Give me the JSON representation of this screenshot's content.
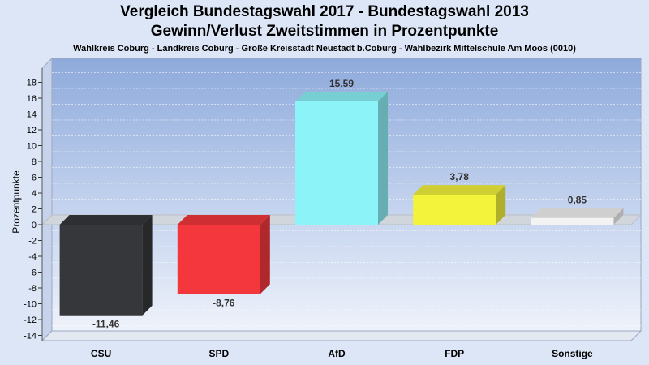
{
  "header": {
    "title_line1": "Vergleich Bundestagswahl 2017 - Bundestagswahl 2013",
    "title_line2": "Gewinn/Verlust Zweitstimmen in Prozentpunkte",
    "subtitle": "Wahlkreis Coburg - Landkreis Coburg - Große Kreisstadt Neustadt b.Coburg - Wahlbezirk Mittelschule Am Moos (0010)"
  },
  "chart_data": {
    "type": "bar",
    "title": "Vergleich Bundestagswahl 2017 - Bundestagswahl 2013 / Gewinn/Verlust Zweitstimmen in Prozentpunkte",
    "xlabel": "",
    "ylabel": "Prozentpunkte",
    "ylim": [
      -14,
      18
    ],
    "yticks": [
      18,
      16,
      14,
      12,
      10,
      8,
      6,
      4,
      2,
      0,
      -2,
      -4,
      -6,
      -8,
      -10,
      -12,
      -14
    ],
    "categories": [
      "CSU",
      "SPD",
      "AfD",
      "FDP",
      "Sonstige"
    ],
    "values": [
      -11.46,
      -8.76,
      15.59,
      3.78,
      0.85
    ],
    "labels": [
      "-11,46",
      "-8,76",
      "15,59",
      "3,78",
      "0,85"
    ],
    "colors": [
      "#35373b",
      "#f3373c",
      "#8cf3f8",
      "#f3f33c",
      "#f3f3f3"
    ],
    "grid": true,
    "legend": "none"
  }
}
